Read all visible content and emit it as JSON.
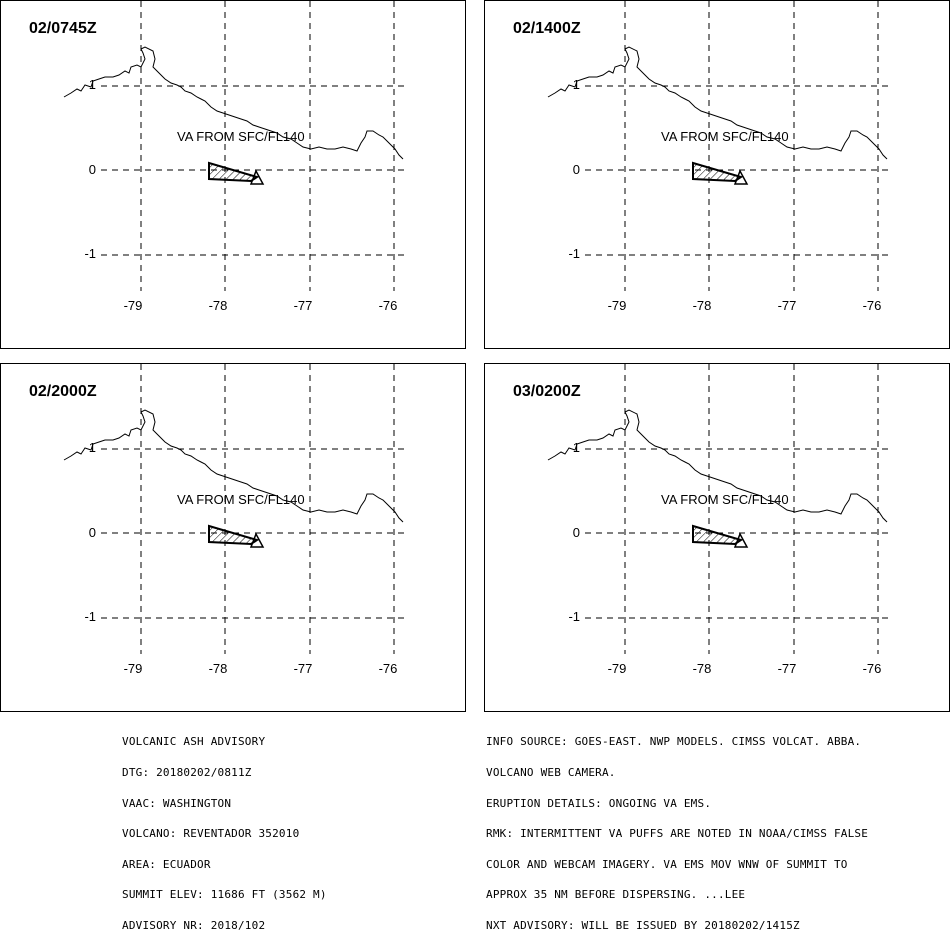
{
  "panels": [
    {
      "time": "02/0745Z"
    },
    {
      "time": "02/1400Z"
    },
    {
      "time": "02/2000Z"
    },
    {
      "time": "03/0200Z"
    }
  ],
  "map": {
    "ash_label": "VA FROM SFC/FL140",
    "lat_labels": [
      "1",
      "0",
      "-1"
    ],
    "lon_labels": [
      "-79",
      "-78",
      "-77",
      "-76"
    ]
  },
  "advisory_left": [
    "VOLCANIC ASH ADVISORY",
    "DTG: 20180202/0811Z",
    "VAAC: WASHINGTON",
    "VOLCANO: REVENTADOR 352010",
    "AREA: ECUADOR",
    "SUMMIT ELEV: 11686 FT (3562 M)",
    "ADVISORY NR: 2018/102"
  ],
  "advisory_right": [
    "INFO SOURCE: GOES-EAST. NWP MODELS. CIMSS VOLCAT. ABBA.",
    "VOLCANO WEB CAMERA.",
    "ERUPTION DETAILS: ONGOING VA EMS.",
    "RMK: INTERMITTENT VA PUFFS ARE NOTED IN NOAA/CIMSS FALSE",
    "COLOR AND WEBCAM IMAGERY. VA EMS MOV WNW OF SUMMIT TO",
    "APPROX 35 NM BEFORE DISPERSING. ...LEE",
    "NXT ADVISORY: WILL BE ISSUED BY 20180202/1415Z"
  ]
}
